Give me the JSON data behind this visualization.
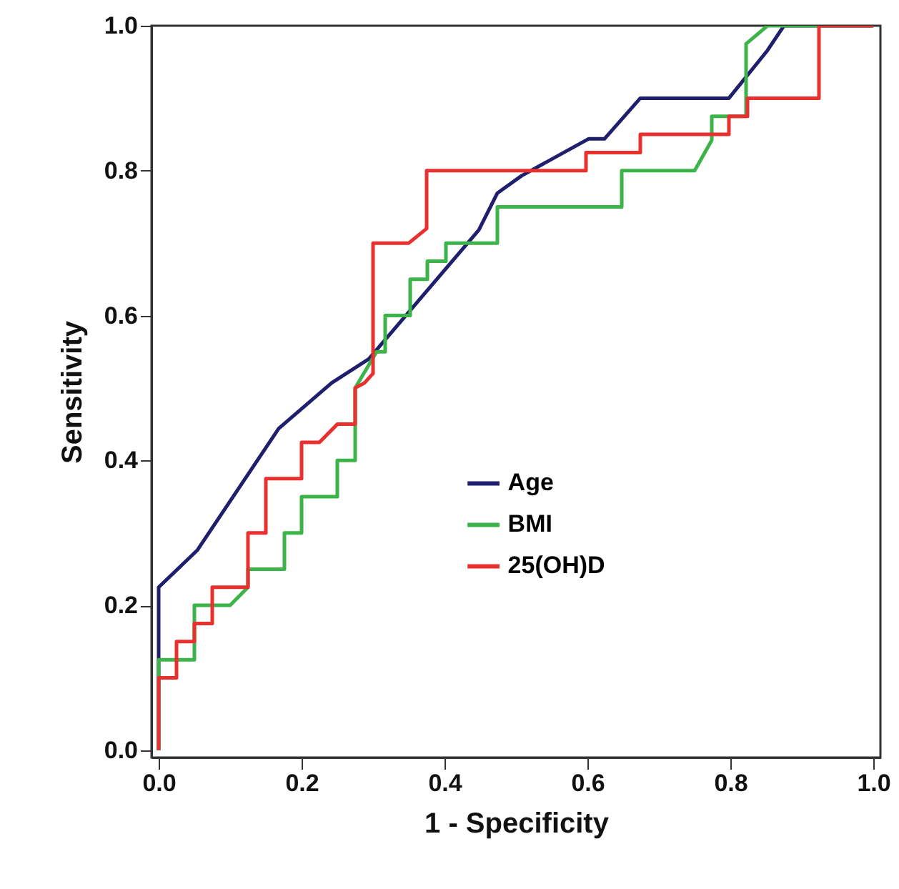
{
  "chart_data": {
    "type": "line",
    "xlabel": "1 - Specificity",
    "ylabel": "Sensitivity",
    "xlim": [
      -0.01,
      1.01
    ],
    "ylim": [
      -0.01,
      1.0
    ],
    "xticks": [
      {
        "value": 0,
        "label": "0.0"
      },
      0.2,
      0.4,
      0.6,
      0.8,
      {
        "value": 1,
        "label": "1.0"
      }
    ],
    "yticks": [
      {
        "value": 0,
        "label": "0.0"
      },
      0.2,
      0.4,
      0.6,
      0.8,
      {
        "value": 1,
        "label": "1.0"
      }
    ],
    "grid": false,
    "legend": "center",
    "marker": "none",
    "line_style": "solid",
    "series": [
      {
        "name": "Age",
        "color": "#1f1f6e",
        "x": [
          0,
          0,
          0.054,
          0.168,
          0.242,
          0.294,
          0.448,
          0.474,
          0.508,
          0.602,
          0.624,
          0.674,
          0.798,
          0.852,
          0.875,
          1.0
        ],
        "values": [
          0,
          0.225,
          0.276,
          0.444,
          0.507,
          0.54,
          0.718,
          0.769,
          0.793,
          0.844,
          0.844,
          0.9,
          0.9,
          0.966,
          1.0,
          1.0
        ]
      },
      {
        "name": "BMI",
        "color": "#3cb44a",
        "x": [
          0,
          0,
          0.05,
          0.05,
          0.1,
          0.125,
          0.125,
          0.176,
          0.176,
          0.2,
          0.2,
          0.25,
          0.25,
          0.275,
          0.275,
          0.305,
          0.317,
          0.317,
          0.352,
          0.352,
          0.376,
          0.376,
          0.402,
          0.402,
          0.474,
          0.474,
          0.648,
          0.648,
          0.75,
          0.774,
          0.774,
          0.822,
          0.822,
          0.852,
          1.0
        ],
        "values": [
          0,
          0.125,
          0.125,
          0.2,
          0.2,
          0.225,
          0.25,
          0.25,
          0.3,
          0.3,
          0.35,
          0.35,
          0.4,
          0.4,
          0.5,
          0.55,
          0.55,
          0.6,
          0.6,
          0.65,
          0.65,
          0.675,
          0.675,
          0.7,
          0.7,
          0.75,
          0.75,
          0.8,
          0.8,
          0.842,
          0.875,
          0.875,
          0.975,
          1.0,
          1.0
        ]
      },
      {
        "name": "25(OH)D",
        "color": "#e8312f",
        "x": [
          0,
          0,
          0.025,
          0.025,
          0.05,
          0.05,
          0.075,
          0.075,
          0.125,
          0.125,
          0.15,
          0.15,
          0.2,
          0.2,
          0.225,
          0.25,
          0.275,
          0.275,
          0.288,
          0.3,
          0.3,
          0.35,
          0.375,
          0.375,
          0.598,
          0.598,
          0.674,
          0.674,
          0.798,
          0.798,
          0.824,
          0.824,
          0.924,
          0.924,
          1.0
        ],
        "values": [
          0,
          0.1,
          0.1,
          0.15,
          0.15,
          0.175,
          0.175,
          0.225,
          0.225,
          0.3,
          0.3,
          0.375,
          0.375,
          0.425,
          0.425,
          0.45,
          0.45,
          0.5,
          0.507,
          0.52,
          0.7,
          0.7,
          0.72,
          0.8,
          0.8,
          0.825,
          0.825,
          0.85,
          0.85,
          0.875,
          0.875,
          0.9,
          0.9,
          1.0,
          1.0
        ]
      }
    ]
  }
}
